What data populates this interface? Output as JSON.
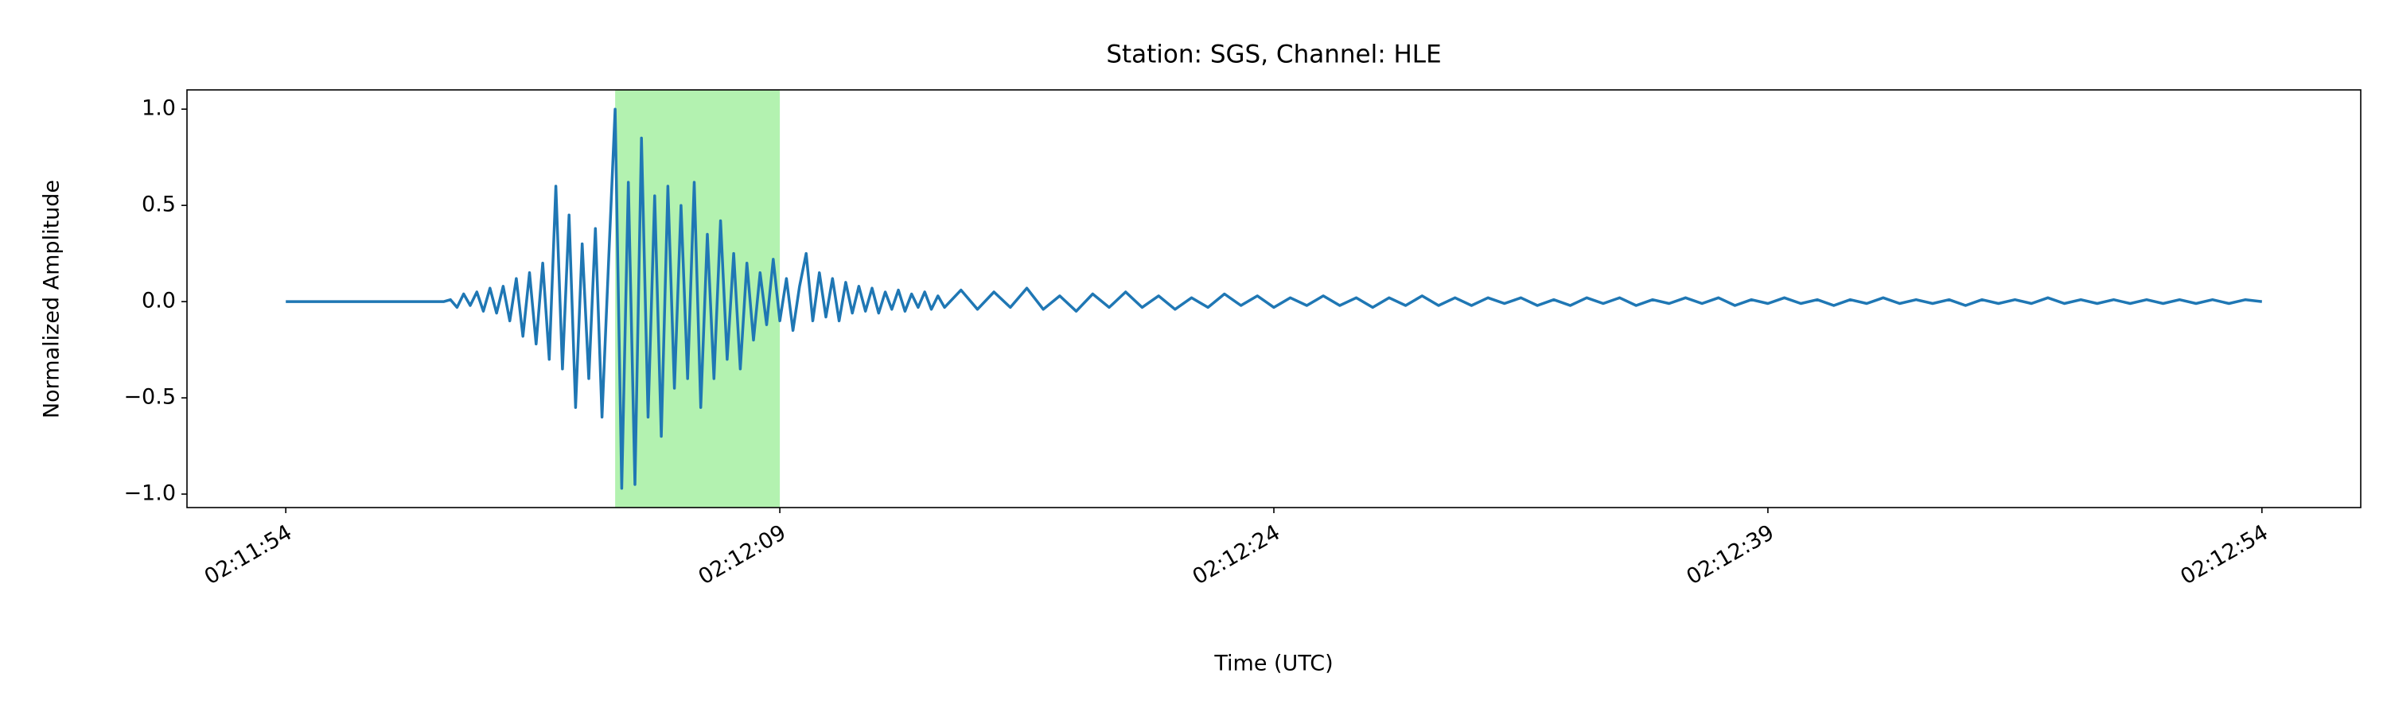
{
  "chart_data": {
    "type": "line",
    "title": "Station: SGS, Channel: HLE",
    "xlabel": "Time (UTC)",
    "ylabel": "Normalized Amplitude",
    "color": "#1f77b4",
    "xlim": [
      7911,
      7977
    ],
    "ylim": [
      -1.07,
      1.1
    ],
    "xticks": [
      {
        "value": 7914,
        "label": "02:11:54"
      },
      {
        "value": 7929,
        "label": "02:12:09"
      },
      {
        "value": 7944,
        "label": "02:12:24"
      },
      {
        "value": 7959,
        "label": "02:12:39"
      },
      {
        "value": 7974,
        "label": "02:12:54"
      }
    ],
    "yticks": [
      {
        "value": -1,
        "label": "−1.0"
      },
      {
        "value": -0.5,
        "label": "−0.5"
      },
      {
        "value": 0,
        "label": "0.0"
      },
      {
        "value": 0.5,
        "label": "0.5"
      },
      {
        "value": 1,
        "label": "1.0"
      }
    ],
    "highlight": {
      "x": [
        7924,
        7929
      ],
      "color": "#b3f2b0"
    },
    "x": [
      7914,
      7918.8,
      7919.0,
      7919.2,
      7919.4,
      7919.6,
      7919.8,
      7920.0,
      7920.2,
      7920.4,
      7920.6,
      7920.8,
      7921.0,
      7921.2,
      7921.4,
      7921.6,
      7921.8,
      7922.0,
      7922.2,
      7922.4,
      7922.6,
      7922.8,
      7923.0,
      7923.2,
      7923.4,
      7923.6,
      7923.8,
      7924.0,
      7924.2,
      7924.4,
      7924.6,
      7924.8,
      7925.0,
      7925.2,
      7925.4,
      7925.6,
      7925.8,
      7926.0,
      7926.2,
      7926.4,
      7926.6,
      7926.8,
      7927.0,
      7927.2,
      7927.4,
      7927.6,
      7927.8,
      7928.0,
      7928.2,
      7928.4,
      7928.6,
      7928.8,
      7929.0,
      7929.2,
      7929.4,
      7929.6,
      7929.8,
      7930.0,
      7930.2,
      7930.4,
      7930.6,
      7930.8,
      7931.0,
      7931.2,
      7931.4,
      7931.6,
      7931.8,
      7932.0,
      7932.2,
      7932.4,
      7932.6,
      7932.8,
      7933.0,
      7933.2,
      7933.4,
      7933.6,
      7933.8,
      7934.0,
      7934.5,
      7935,
      7935.5,
      7936,
      7936.5,
      7937,
      7937.5,
      7938,
      7938.5,
      7939,
      7939.5,
      7940,
      7940.5,
      7941,
      7941.5,
      7942,
      7942.5,
      7943,
      7943.5,
      7944,
      7944.5,
      7945,
      7945.5,
      7946,
      7946.5,
      7947,
      7947.5,
      7948,
      7948.5,
      7949,
      7949.5,
      7950,
      7950.5,
      7951,
      7951.5,
      7952,
      7952.5,
      7953,
      7953.5,
      7954,
      7954.5,
      7955,
      7955.5,
      7956,
      7956.5,
      7957,
      7957.5,
      7958,
      7958.5,
      7959,
      7959.5,
      7960,
      7960.5,
      7961,
      7961.5,
      7962,
      7962.5,
      7963,
      7963.5,
      7964,
      7964.5,
      7965,
      7965.5,
      7966,
      7966.5,
      7967,
      7967.5,
      7968,
      7968.5,
      7969,
      7969.5,
      7970,
      7970.5,
      7971,
      7971.5,
      7972,
      7972.5,
      7973,
      7973.5,
      7974
    ],
    "values": [
      0,
      0,
      0.01,
      -0.03,
      0.04,
      -0.02,
      0.05,
      -0.05,
      0.07,
      -0.06,
      0.08,
      -0.1,
      0.12,
      -0.18,
      0.15,
      -0.22,
      0.2,
      -0.3,
      0.6,
      -0.35,
      0.45,
      -0.55,
      0.3,
      -0.4,
      0.38,
      -0.6,
      0.2,
      1.0,
      -0.97,
      0.62,
      -0.95,
      0.85,
      -0.6,
      0.55,
      -0.7,
      0.6,
      -0.45,
      0.5,
      -0.4,
      0.62,
      -0.55,
      0.35,
      -0.4,
      0.42,
      -0.3,
      0.25,
      -0.35,
      0.2,
      -0.2,
      0.15,
      -0.12,
      0.22,
      -0.1,
      0.12,
      -0.15,
      0.08,
      0.25,
      -0.1,
      0.15,
      -0.08,
      0.12,
      -0.1,
      0.1,
      -0.06,
      0.08,
      -0.05,
      0.07,
      -0.06,
      0.05,
      -0.04,
      0.06,
      -0.05,
      0.04,
      -0.03,
      0.05,
      -0.04,
      0.03,
      -0.03,
      0.06,
      -0.04,
      0.05,
      -0.03,
      0.07,
      -0.04,
      0.03,
      -0.05,
      0.04,
      -0.03,
      0.05,
      -0.03,
      0.03,
      -0.04,
      0.02,
      -0.03,
      0.04,
      -0.02,
      0.03,
      -0.03,
      0.02,
      -0.02,
      0.03,
      -0.02,
      0.02,
      -0.03,
      0.02,
      -0.02,
      0.03,
      -0.02,
      0.02,
      -0.02,
      0.02,
      -0.01,
      0.02,
      -0.02,
      0.01,
      -0.02,
      0.02,
      -0.01,
      0.02,
      -0.02,
      0.01,
      -0.01,
      0.02,
      -0.01,
      0.02,
      -0.02,
      0.01,
      -0.01,
      0.02,
      -0.01,
      0.01,
      -0.02,
      0.01,
      -0.01,
      0.02,
      -0.01,
      0.01,
      -0.01,
      0.01,
      -0.02,
      0.01,
      -0.01,
      0.01,
      -0.01,
      0.02,
      -0.01,
      0.01,
      -0.01,
      0.01,
      -0.01,
      0.01,
      -0.01,
      0.01,
      -0.01,
      0.01,
      -0.01,
      0.01,
      0
    ]
  }
}
